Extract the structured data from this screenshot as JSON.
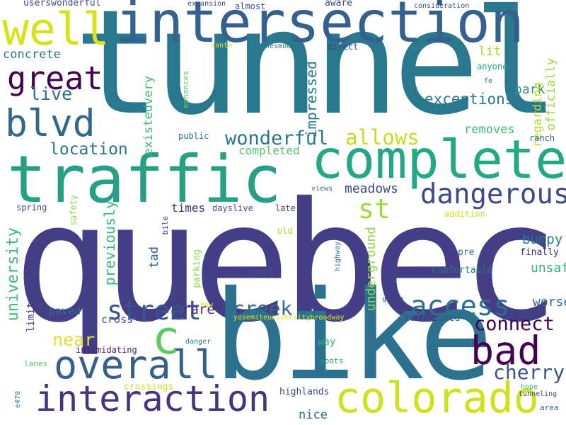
{
  "words": [
    {
      "text": "tunnel",
      "color": "#2a788e"
    },
    {
      "text": "quebec",
      "color": "#433e85"
    },
    {
      "text": "bike",
      "color": "#2c728e"
    },
    {
      "text": "intersection",
      "color": "#34618d"
    },
    {
      "text": "traffic",
      "color": "#25a085"
    },
    {
      "text": "complete",
      "color": "#22a884"
    },
    {
      "text": "interaction",
      "color": "#463480"
    },
    {
      "text": "colorado",
      "color": "#d0e11c"
    },
    {
      "text": "overall",
      "color": "#355f8d"
    },
    {
      "text": "well",
      "color": "#d8e219"
    },
    {
      "text": "bad",
      "color": "#440154"
    },
    {
      "text": "blvd",
      "color": "#31688e"
    },
    {
      "text": "great",
      "color": "#440154"
    },
    {
      "text": "dangerous",
      "color": "#3e4989"
    },
    {
      "text": "street",
      "color": "#39558c"
    },
    {
      "text": "access",
      "color": "#2d708e"
    },
    {
      "text": "c",
      "color": "#5ec962"
    },
    {
      "text": "st",
      "color": "#a0da39"
    },
    {
      "text": "cherry",
      "color": "#3b528b"
    },
    {
      "text": "creek",
      "color": "#31688e"
    },
    {
      "text": "connect",
      "color": "#440154"
    },
    {
      "text": "wonderful",
      "color": "#2a788e"
    },
    {
      "text": "allows",
      "color": "#c2df23"
    },
    {
      "text": "location",
      "color": "#2a768e"
    },
    {
      "text": "university",
      "color": "#38b977"
    },
    {
      "text": "live",
      "color": "#2e6d8e"
    },
    {
      "text": "exceptions",
      "color": "#2a788e"
    },
    {
      "text": "impressed",
      "color": "#2a788e"
    },
    {
      "text": "meadows",
      "color": "#3e4a89"
    },
    {
      "text": "near",
      "color": "#e1dd37"
    },
    {
      "text": "previously",
      "color": "#38b977"
    },
    {
      "text": "bumpy",
      "color": "#2a788e"
    },
    {
      "text": "unsafe",
      "color": "#2eb37c"
    },
    {
      "text": "worse",
      "color": "#32658e"
    },
    {
      "text": "rare",
      "color": "#482576"
    },
    {
      "text": "underground",
      "color": "#8fd744"
    },
    {
      "text": "existedvery",
      "color": "#3fbc73"
    },
    {
      "text": "concrete",
      "color": "#2a788e"
    },
    {
      "text": "park",
      "color": "#3b8a8c"
    },
    {
      "text": "lit",
      "color": "#a5db36"
    },
    {
      "text": "regarding",
      "color": "#b5de2b"
    },
    {
      "text": "officially",
      "color": "#9bd93c"
    },
    {
      "text": "removes",
      "color": "#3bbb75"
    },
    {
      "text": "completed",
      "color": "#56c667"
    },
    {
      "text": "times",
      "color": "#462f7f"
    },
    {
      "text": "tad",
      "color": "#34618d"
    },
    {
      "text": "mall",
      "color": "#3d4e8a"
    },
    {
      "text": "paved",
      "color": "#31688e"
    },
    {
      "text": "cross",
      "color": "#3a538b"
    },
    {
      "text": "limited",
      "color": "#443a83"
    },
    {
      "text": "nice",
      "color": "#2d718e"
    },
    {
      "text": "highlands",
      "color": "#3e4989"
    },
    {
      "text": "crossings",
      "color": "#c8e020"
    },
    {
      "text": "maintained",
      "color": "#39568c"
    },
    {
      "text": "comfortable",
      "color": "#2c738e"
    },
    {
      "text": "finally",
      "color": "#482173"
    },
    {
      "text": "pre",
      "color": "#2c728e"
    },
    {
      "text": "intimidating",
      "color": "#481b6d"
    },
    {
      "text": "way",
      "color": "#32b67a"
    },
    {
      "text": "spots",
      "color": "#1f988b"
    },
    {
      "text": "parking",
      "color": "#8bd646"
    },
    {
      "text": "safety",
      "color": "#90d743"
    },
    {
      "text": "public",
      "color": "#2a768e"
    },
    {
      "text": "ranch",
      "color": "#31688e"
    },
    {
      "text": "spring",
      "color": "#3b528b"
    },
    {
      "text": "dayslive",
      "color": "#3b528b"
    },
    {
      "text": "late",
      "color": "#3e4989"
    },
    {
      "text": "addition",
      "color": "#c8e020"
    },
    {
      "text": "old",
      "color": "#a2da37"
    },
    {
      "text": "bile",
      "color": "#3f4788"
    },
    {
      "text": "almost",
      "color": "#3e4989"
    },
    {
      "text": "aware",
      "color": "#3e4989"
    },
    {
      "text": "userswonderful",
      "color": "#3e4989"
    },
    {
      "text": "expansion",
      "color": "#3e4989"
    },
    {
      "text": "consideration",
      "color": "#3e4989"
    },
    {
      "text": "santa",
      "color": "#e3e418"
    },
    {
      "text": "donesmooth",
      "color": "#2a788e"
    },
    {
      "text": "direct",
      "color": "#3e4989"
    },
    {
      "text": "anyone",
      "color": "#22a884"
    },
    {
      "text": "fe",
      "color": "#2a788e"
    },
    {
      "text": "enhances",
      "color": "#5ec962"
    },
    {
      "text": "views",
      "color": "#31688e"
    },
    {
      "text": "highway",
      "color": "#2a788e"
    },
    {
      "text": "given",
      "color": "#3e4989"
    },
    {
      "text": "yosemiteuniversitybroadway",
      "color": "#e3e418"
    },
    {
      "text": "now",
      "color": "#d0e11c"
    },
    {
      "text": "danger",
      "color": "#2a788e"
    },
    {
      "text": "e470",
      "color": "#2a788e"
    },
    {
      "text": "lanes",
      "color": "#56c667"
    },
    {
      "text": "hope",
      "color": "#35b779"
    },
    {
      "text": "tunneling",
      "color": "#3e4989"
    },
    {
      "text": "area",
      "color": "#31688e"
    }
  ]
}
